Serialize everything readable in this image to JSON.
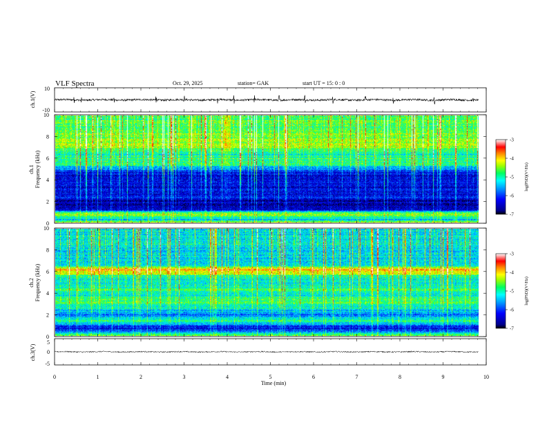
{
  "header": {
    "title": "VLF  Spectra",
    "date": "Oct. 29, 2025",
    "station": "station= GAK",
    "start": "start  UT  =    15: 0   : 0"
  },
  "chart_data": {
    "type": "heatmap",
    "title": "VLF  Spectra",
    "xlabel": "Time  (min)",
    "xlim": [
      0,
      10
    ],
    "x_ticks": [
      "0",
      "1",
      "2",
      "3",
      "4",
      "5",
      "6",
      "7",
      "8",
      "9",
      "10"
    ],
    "data_end_min": 9.82,
    "panels": [
      {
        "id": "ch1_waveform",
        "kind": "line",
        "ylabel": "ch.1(V)",
        "ylim": [
          -10,
          10
        ],
        "y_ticks": [
          "10",
          "-10"
        ],
        "baseline": 0,
        "amplitude_range": [
          -1.5,
          1.5
        ],
        "spikes_min": [
          0.45,
          0.62,
          1.38,
          2.35,
          3.0,
          3.78,
          4.15,
          4.63,
          5.2,
          5.8,
          6.45,
          7.2,
          7.85,
          8.8,
          9.7
        ]
      },
      {
        "id": "ch1_spectrogram",
        "kind": "heatmap",
        "ylabel_line1": "ch.1",
        "ylabel_line2": "Frequency  (kHz)",
        "ylim": [
          0,
          10
        ],
        "y_ticks": [
          "0",
          "2",
          "4",
          "6",
          "8",
          "10"
        ],
        "colorbar": {
          "label": "log(PSD)(V²/Hz)",
          "range": [
            -7,
            -3
          ],
          "ticks": [
            "-3",
            "-4",
            "-5",
            "-6",
            "-7"
          ],
          "colormap": [
            "#00008b",
            "#0000ff",
            "#0080ff",
            "#00ffff",
            "#00ff80",
            "#80ff00",
            "#ffff00",
            "#ff8000",
            "#ff0000",
            "#ffffff"
          ]
        },
        "profile_khz": [
          [
            0,
            -4.0
          ],
          [
            0.3,
            -5.6
          ],
          [
            0.7,
            -4.6
          ],
          [
            1.0,
            -4.9
          ],
          [
            1.2,
            -6.6
          ],
          [
            2.0,
            -6.8
          ],
          [
            2.4,
            -6.3
          ],
          [
            3.6,
            -6.6
          ],
          [
            4.6,
            -6.4
          ],
          [
            5.0,
            -6.0
          ],
          [
            5.4,
            -5.2
          ],
          [
            6.0,
            -4.9
          ],
          [
            6.5,
            -5.3
          ],
          [
            7.0,
            -4.6
          ],
          [
            8.5,
            -4.7
          ],
          [
            10.0,
            -4.9
          ]
        ],
        "sferic_strength": 1.0
      },
      {
        "id": "ch2_spectrogram",
        "kind": "heatmap",
        "ylabel_line1": "ch.2",
        "ylabel_line2": "Frequency  (kHz)",
        "ylim": [
          0,
          10
        ],
        "y_ticks": [
          "0",
          "2",
          "4",
          "6",
          "8",
          "10"
        ],
        "colorbar": {
          "label": "log(PSD)(V²/Hz)",
          "range": [
            -7,
            -3
          ],
          "ticks": [
            "-3",
            "-4",
            "-5",
            "-6",
            "-7"
          ],
          "colormap": [
            "#00008b",
            "#0000ff",
            "#0080ff",
            "#00ffff",
            "#00ff80",
            "#80ff00",
            "#ffff00",
            "#ff8000",
            "#ff0000",
            "#ffffff"
          ]
        },
        "profile_khz": [
          [
            0,
            -4.3
          ],
          [
            0.4,
            -5.8
          ],
          [
            0.8,
            -6.5
          ],
          [
            1.4,
            -5.0
          ],
          [
            2.0,
            -6.0
          ],
          [
            2.6,
            -5.3
          ],
          [
            3.2,
            -4.8
          ],
          [
            3.8,
            -5.3
          ],
          [
            4.4,
            -5.0
          ],
          [
            5.0,
            -5.4
          ],
          [
            5.6,
            -5.1
          ],
          [
            6.2,
            -3.8
          ],
          [
            6.6,
            -5.2
          ],
          [
            7.2,
            -5.5
          ],
          [
            8.5,
            -5.3
          ],
          [
            10.0,
            -5.4
          ]
        ],
        "sferic_strength": 0.85
      },
      {
        "id": "ch3_waveform",
        "kind": "line",
        "ylabel": "ch.3(V)",
        "ylim": [
          -5,
          5
        ],
        "y_ticks": [
          "5",
          "0",
          "-5"
        ],
        "baseline": 0,
        "amplitude_range": [
          -0.3,
          0.3
        ]
      }
    ]
  }
}
